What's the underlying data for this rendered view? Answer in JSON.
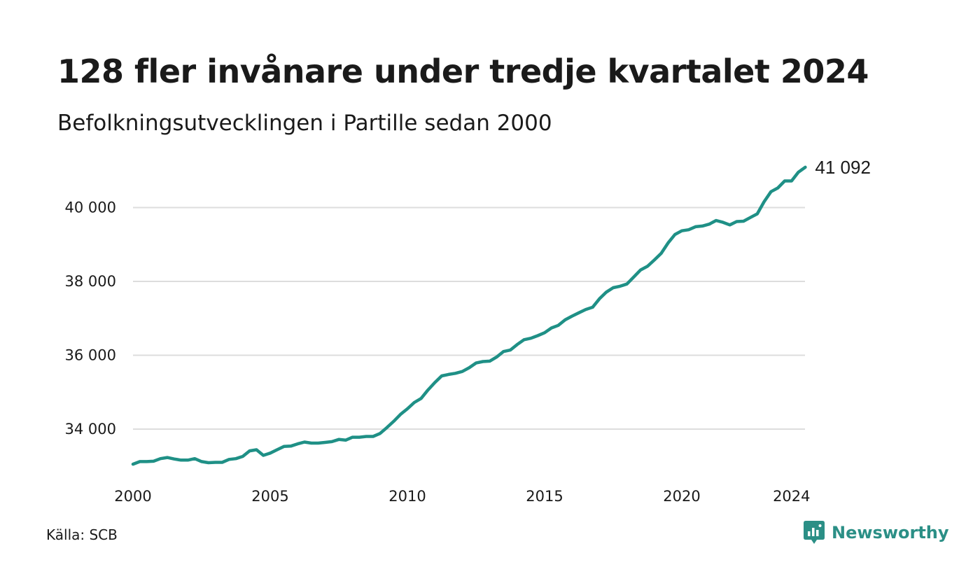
{
  "title": "128 fler invånare under tredje kvartalet 2024",
  "subtitle": "Befolkningsutvecklingen i Partille sedan 2000",
  "source": "Källa: SCB",
  "brand": "Newsworthy",
  "colors": {
    "line": "#1f9086",
    "grid": "#dddddd",
    "brand": "#2b8f86"
  },
  "chart_data": {
    "type": "line",
    "title": "128 fler invånare under tredje kvartalet 2024",
    "subtitle": "Befolkningsutvecklingen i Partille sedan 2000",
    "xlabel": "",
    "ylabel": "",
    "xlim": [
      2000,
      2024.75
    ],
    "ylim": [
      32700,
      41300
    ],
    "grid": true,
    "legend": "none",
    "x_ticks": [
      2000,
      2005,
      2010,
      2015,
      2020,
      2024
    ],
    "x_tick_labels": [
      "2000",
      "2005",
      "2010",
      "2015",
      "2020",
      "2024"
    ],
    "y_ticks": [
      34000,
      36000,
      38000,
      40000
    ],
    "y_tick_labels": [
      "34 000",
      "36 000",
      "38 000",
      "40 000"
    ],
    "end_label": "41 092",
    "series": [
      {
        "x": [
          2000.0,
          2000.25,
          2000.5,
          2000.75,
          2001.0,
          2001.25,
          2001.5,
          2001.75,
          2002.0,
          2002.25,
          2002.5,
          2002.75,
          2003.0,
          2003.25,
          2003.5,
          2003.75,
          2004.0,
          2004.25,
          2004.5,
          2004.75,
          2005.0,
          2005.25,
          2005.5,
          2005.75,
          2006.0,
          2006.25,
          2006.5,
          2006.75,
          2007.0,
          2007.25,
          2007.5,
          2007.75,
          2008.0,
          2008.25,
          2008.5,
          2008.75,
          2009.0,
          2009.25,
          2009.5,
          2009.75,
          2010.0,
          2010.25,
          2010.5,
          2010.75,
          2011.0,
          2011.25,
          2011.5,
          2011.75,
          2012.0,
          2012.25,
          2012.5,
          2012.75,
          2013.0,
          2013.25,
          2013.5,
          2013.75,
          2014.0,
          2014.25,
          2014.5,
          2014.75,
          2015.0,
          2015.25,
          2015.5,
          2015.75,
          2016.0,
          2016.25,
          2016.5,
          2016.75,
          2017.0,
          2017.25,
          2017.5,
          2017.75,
          2018.0,
          2018.25,
          2018.5,
          2018.75,
          2019.0,
          2019.25,
          2019.5,
          2019.75,
          2020.0,
          2020.25,
          2020.5,
          2020.75,
          2021.0,
          2021.25,
          2021.5,
          2021.75,
          2022.0,
          2022.25,
          2022.5,
          2022.75,
          2023.0,
          2023.25,
          2023.5,
          2023.75,
          2024.0,
          2024.25,
          2024.5
        ],
        "values": [
          33050,
          33120,
          33120,
          33130,
          33200,
          33230,
          33190,
          33160,
          33160,
          33200,
          33120,
          33090,
          33100,
          33100,
          33180,
          33200,
          33260,
          33410,
          33440,
          33290,
          33350,
          33440,
          33530,
          33540,
          33600,
          33650,
          33620,
          33620,
          33640,
          33660,
          33720,
          33700,
          33780,
          33780,
          33800,
          33800,
          33880,
          34040,
          34210,
          34400,
          34550,
          34720,
          34830,
          35060,
          35260,
          35440,
          35480,
          35510,
          35560,
          35660,
          35790,
          35830,
          35840,
          35950,
          36100,
          36140,
          36290,
          36420,
          36460,
          36530,
          36610,
          36740,
          36810,
          36960,
          37060,
          37150,
          37240,
          37300,
          37530,
          37710,
          37830,
          37870,
          37930,
          38120,
          38310,
          38410,
          38580,
          38760,
          39040,
          39270,
          39370,
          39400,
          39480,
          39500,
          39550,
          39650,
          39600,
          39530,
          39620,
          39630,
          39730,
          39830,
          40160,
          40430,
          40530,
          40720,
          40720,
          40960,
          41092
        ]
      }
    ]
  }
}
